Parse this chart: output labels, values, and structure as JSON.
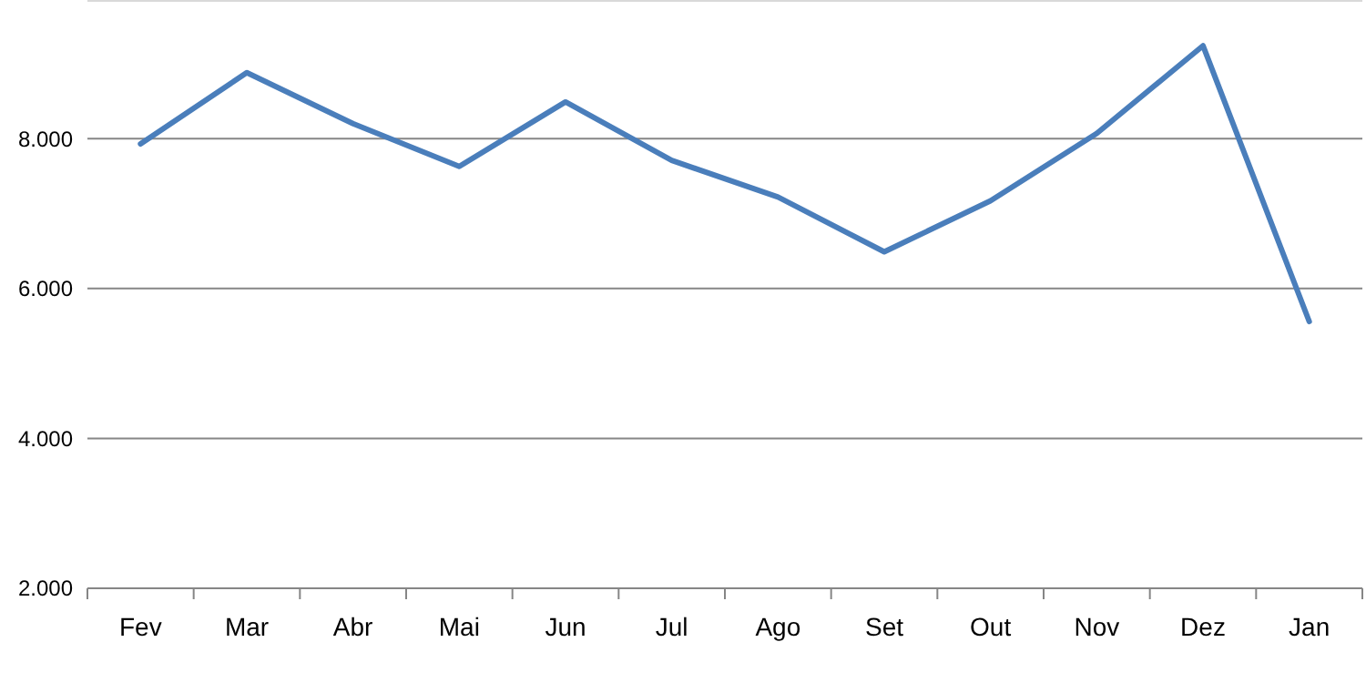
{
  "chart_data": {
    "type": "line",
    "categories": [
      "Fev",
      "Mar",
      "Abr",
      "Mai",
      "Jun",
      "Jul",
      "Ago",
      "Set",
      "Out",
      "Nov",
      "Dez",
      "Jan"
    ],
    "series": [
      {
        "color": "#4a7ebb",
        "values": [
          7930,
          8880,
          8200,
          7630,
          8490,
          7710,
          7220,
          6490,
          7170,
          8070,
          9240,
          5560
        ]
      }
    ],
    "ylim": [
      2000,
      9850
    ],
    "yticks": [
      {
        "value": 2000,
        "label": "2.000"
      },
      {
        "value": 4000,
        "label": "4.000"
      },
      {
        "value": 6000,
        "label": "6.000"
      },
      {
        "value": 8000,
        "label": "8.000"
      }
    ],
    "grid": "y",
    "marker": "none",
    "line_style": "solid"
  }
}
